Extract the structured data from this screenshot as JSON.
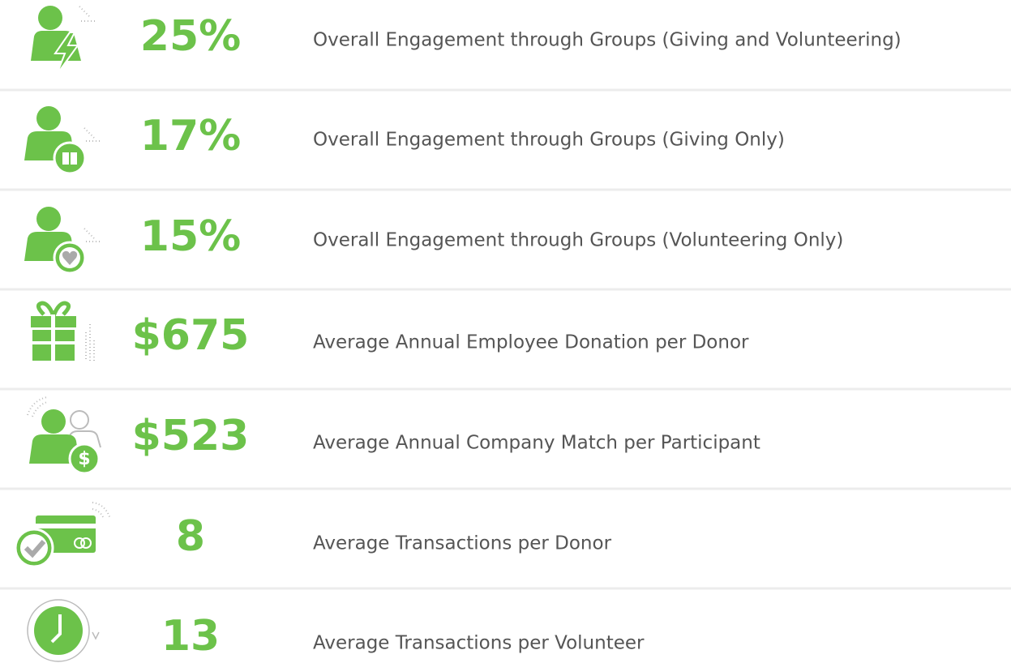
{
  "rows": [
    {
      "value": "25%",
      "label": "Overall Engagement through Groups (Giving and Volunteering)"
    },
    {
      "value": "17%",
      "label": "Overall Engagement through Groups (Giving Only)"
    },
    {
      "value": "15%",
      "label": "Overall Engagement through Groups (Volunteering Only)"
    },
    {
      "value": "$675",
      "label": "Average Annual Employee Donation per Donor"
    },
    {
      "value": "$523",
      "label": "Average Annual Company Match per Participant"
    },
    {
      "value": "8",
      "label": "Average Transactions per Donor"
    },
    {
      "value": "13",
      "label": "Average Transactions per Volunteer"
    }
  ]
}
